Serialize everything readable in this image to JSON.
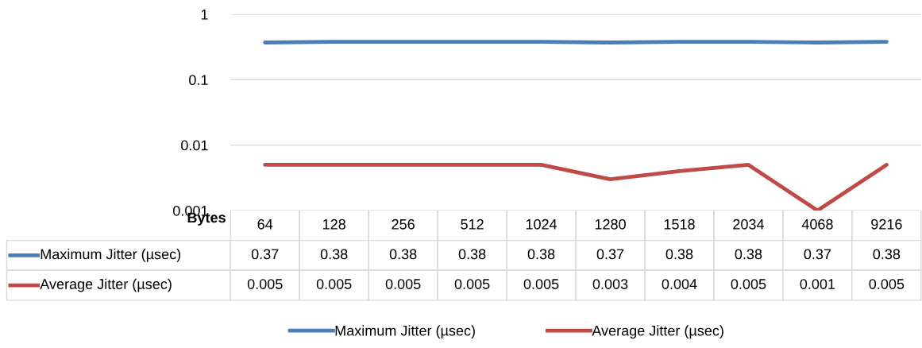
{
  "chart_data": {
    "type": "line",
    "xlabel": "Bytes",
    "categories": [
      "64",
      "128",
      "256",
      "512",
      "1024",
      "1280",
      "1518",
      "2034",
      "4068",
      "9216"
    ],
    "series": [
      {
        "name": "Maximum Jitter (µsec)",
        "color": "#4a7ebb",
        "values": [
          0.37,
          0.38,
          0.38,
          0.38,
          0.38,
          0.37,
          0.38,
          0.38,
          0.37,
          0.38
        ]
      },
      {
        "name": "Average Jitter (µsec)",
        "color": "#be4b48",
        "values": [
          0.005,
          0.005,
          0.005,
          0.005,
          0.005,
          0.003,
          0.004,
          0.005,
          0.001,
          0.005
        ]
      }
    ],
    "log": "y",
    "ylim": [
      0.001,
      1
    ],
    "yticks": [
      0.001,
      0.01,
      0.1,
      1
    ],
    "grid": "y",
    "legend": "bottom",
    "data_labels": true,
    "marker": "none",
    "line_style": "solid"
  }
}
